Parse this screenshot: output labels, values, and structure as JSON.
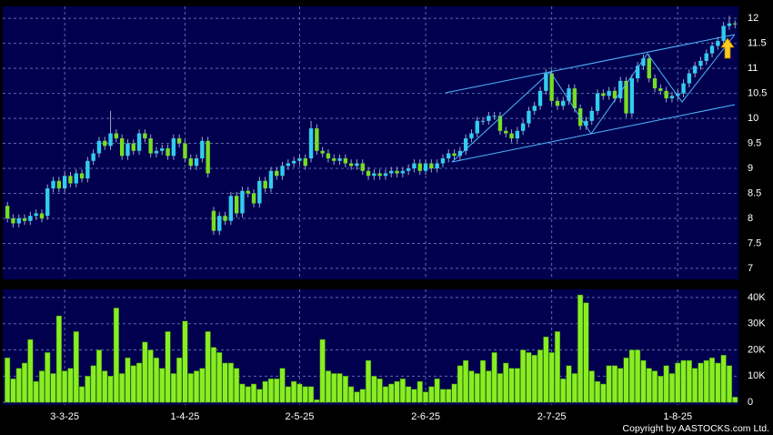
{
  "chart_data": [
    {
      "type": "candlestick",
      "up_color": "#33ccee",
      "down_color": "#77dd22",
      "ylim": [
        6.78,
        12.24
      ],
      "yticks": [
        7,
        7.5,
        8,
        8.5,
        9,
        9.5,
        10,
        10.5,
        11,
        11.5,
        12
      ],
      "grid": true,
      "categories": [
        null,
        null,
        null,
        null,
        null,
        null,
        null,
        null,
        null,
        null,
        "3-3-25",
        null,
        null,
        null,
        null,
        null,
        null,
        null,
        null,
        null,
        null,
        null,
        null,
        null,
        null,
        null,
        null,
        null,
        null,
        null,
        null,
        "1-4-25",
        null,
        null,
        null,
        null,
        null,
        null,
        null,
        null,
        null,
        null,
        null,
        null,
        null,
        null,
        null,
        null,
        null,
        null,
        null,
        "2-5-25",
        null,
        null,
        null,
        null,
        null,
        null,
        null,
        null,
        null,
        null,
        null,
        null,
        null,
        null,
        null,
        null,
        null,
        null,
        null,
        null,
        null,
        "2-6-25",
        null,
        null,
        null,
        null,
        null,
        null,
        null,
        null,
        null,
        null,
        null,
        null,
        null,
        null,
        null,
        null,
        null,
        null,
        null,
        null,
        null,
        "2-7-25",
        null,
        null,
        null,
        null,
        null,
        null,
        null,
        null,
        null,
        null,
        null,
        null,
        null,
        null,
        null,
        null,
        null,
        null,
        null,
        null,
        null,
        "1-8-25",
        null,
        null,
        null,
        null,
        null,
        null,
        null,
        null,
        null,
        null
      ],
      "open": [
        8.25,
        8.0,
        7.9,
        8.0,
        7.95,
        8.05,
        8.1,
        8.05,
        8.6,
        8.75,
        8.6,
        8.85,
        8.7,
        8.9,
        8.8,
        9.15,
        9.3,
        9.55,
        9.45,
        9.7,
        9.6,
        9.25,
        9.5,
        9.35,
        9.7,
        9.6,
        9.3,
        9.35,
        9.4,
        9.25,
        9.6,
        9.5,
        9.2,
        9.05,
        9.2,
        9.55,
        8.15,
        7.75,
        8.05,
        7.95,
        8.45,
        8.1,
        8.55,
        8.5,
        8.3,
        8.75,
        8.6,
        8.95,
        8.85,
        9.05,
        9.1,
        9.15,
        9.2,
        9.2,
        9.8,
        9.35,
        9.3,
        9.2,
        9.15,
        9.2,
        9.1,
        9.05,
        9.1,
        8.95,
        8.85,
        8.9,
        8.85,
        8.9,
        8.95,
        8.9,
        8.95,
        9.0,
        9.1,
        8.95,
        9.1,
        9.0,
        9.1,
        9.2,
        9.3,
        9.25,
        9.35,
        9.6,
        9.7,
        9.95,
        9.95,
        10.05,
        10.05,
        9.75,
        9.7,
        9.6,
        9.75,
        9.9,
        10.15,
        10.25,
        10.55,
        10.9,
        10.35,
        10.25,
        10.35,
        10.6,
        10.2,
        9.85,
        9.95,
        10.15,
        10.5,
        10.45,
        10.55,
        10.4,
        10.75,
        10.1,
        10.8,
        11.05,
        11.2,
        10.8,
        10.6,
        10.55,
        10.4,
        10.45,
        10.5,
        10.7,
        10.9,
        11.05,
        11.15,
        11.3,
        11.45,
        11.55,
        11.85,
        11.9
      ],
      "high": [
        8.33,
        8.08,
        8.08,
        8.08,
        8.13,
        8.18,
        8.18,
        8.68,
        8.83,
        8.83,
        8.93,
        8.93,
        8.98,
        8.98,
        9.23,
        9.38,
        9.63,
        9.63,
        10.15,
        9.78,
        9.68,
        9.58,
        9.58,
        9.78,
        9.78,
        9.68,
        9.43,
        9.48,
        9.48,
        9.68,
        9.68,
        9.58,
        9.28,
        9.28,
        9.63,
        9.63,
        8.23,
        8.13,
        8.13,
        8.53,
        8.53,
        8.63,
        8.63,
        8.58,
        8.83,
        8.83,
        9.03,
        9.03,
        9.13,
        9.18,
        9.23,
        9.28,
        9.28,
        9.95,
        9.88,
        9.43,
        9.38,
        9.28,
        9.28,
        9.28,
        9.18,
        9.18,
        9.18,
        9.03,
        8.98,
        8.98,
        8.98,
        9.03,
        9.03,
        9.03,
        9.08,
        9.18,
        9.18,
        9.18,
        9.18,
        9.18,
        9.28,
        9.38,
        9.38,
        9.43,
        9.68,
        9.78,
        10.03,
        10.03,
        10.13,
        10.13,
        10.13,
        9.83,
        9.78,
        9.83,
        9.98,
        10.23,
        10.33,
        10.63,
        10.98,
        10.98,
        10.43,
        10.43,
        10.68,
        10.68,
        10.28,
        10.03,
        10.23,
        10.58,
        10.58,
        10.63,
        10.63,
        10.83,
        10.83,
        10.88,
        11.13,
        11.28,
        11.28,
        10.88,
        10.68,
        10.63,
        10.53,
        10.58,
        10.78,
        10.98,
        11.13,
        11.23,
        11.38,
        11.53,
        11.63,
        11.93,
        12.05,
        11.96
      ],
      "low": [
        7.92,
        7.82,
        7.82,
        7.87,
        7.87,
        7.97,
        7.92,
        7.97,
        8.52,
        8.52,
        8.52,
        8.62,
        8.62,
        8.72,
        8.72,
        9.07,
        9.22,
        9.37,
        9.37,
        9.52,
        9.17,
        9.17,
        9.27,
        9.27,
        9.52,
        9.22,
        9.22,
        9.27,
        9.17,
        9.17,
        9.42,
        9.12,
        8.97,
        8.97,
        9.12,
        8.82,
        7.67,
        7.67,
        7.87,
        7.87,
        8.02,
        8.02,
        8.42,
        8.22,
        8.22,
        8.52,
        8.52,
        8.77,
        8.77,
        8.97,
        9.02,
        9.07,
        8.97,
        9.12,
        9.27,
        9.22,
        9.12,
        9.07,
        9.07,
        9.02,
        8.97,
        8.97,
        8.87,
        8.77,
        8.77,
        8.77,
        8.77,
        8.82,
        8.82,
        8.82,
        8.87,
        8.92,
        8.87,
        8.87,
        8.92,
        8.92,
        9.02,
        9.12,
        9.17,
        9.17,
        9.27,
        9.52,
        9.62,
        9.87,
        9.87,
        9.97,
        9.67,
        9.62,
        9.52,
        9.52,
        9.67,
        9.82,
        10.07,
        10.17,
        10.47,
        10.27,
        10.17,
        10.17,
        10.27,
        10.12,
        9.77,
        9.77,
        9.87,
        10.07,
        10.37,
        10.37,
        10.32,
        10.32,
        10.02,
        10.02,
        10.72,
        10.97,
        10.72,
        10.52,
        10.47,
        10.32,
        10.32,
        10.37,
        10.42,
        10.62,
        10.82,
        10.97,
        11.07,
        11.22,
        11.37,
        11.47,
        11.77,
        11.8
      ],
      "close": [
        8.0,
        7.9,
        8.0,
        7.95,
        8.05,
        8.1,
        8.0,
        8.6,
        8.75,
        8.6,
        8.85,
        8.7,
        8.9,
        8.8,
        9.15,
        9.3,
        9.55,
        9.45,
        9.7,
        9.6,
        9.25,
        9.5,
        9.35,
        9.7,
        9.6,
        9.3,
        9.35,
        9.4,
        9.25,
        9.6,
        9.5,
        9.2,
        9.05,
        9.2,
        9.55,
        8.9,
        7.75,
        8.05,
        7.95,
        8.45,
        8.1,
        8.55,
        8.5,
        8.3,
        8.75,
        8.6,
        8.95,
        8.85,
        9.05,
        9.1,
        9.15,
        9.2,
        9.05,
        9.8,
        9.35,
        9.3,
        9.2,
        9.15,
        9.2,
        9.1,
        9.05,
        9.1,
        8.95,
        8.85,
        8.9,
        8.85,
        8.9,
        8.95,
        8.9,
        8.95,
        9.0,
        9.1,
        8.95,
        9.1,
        9.0,
        9.1,
        9.2,
        9.3,
        9.25,
        9.35,
        9.6,
        9.7,
        9.95,
        9.95,
        10.05,
        10.05,
        9.75,
        9.7,
        9.6,
        9.75,
        9.9,
        10.15,
        10.25,
        10.55,
        10.9,
        10.35,
        10.25,
        10.35,
        10.6,
        10.2,
        9.85,
        9.95,
        10.15,
        10.5,
        10.45,
        10.55,
        10.4,
        10.75,
        10.1,
        10.8,
        11.05,
        11.2,
        10.8,
        10.6,
        10.55,
        10.4,
        10.45,
        10.5,
        10.7,
        10.9,
        11.05,
        11.15,
        11.3,
        11.45,
        11.55,
        11.85,
        11.9,
        11.88
      ]
    },
    {
      "type": "bar",
      "color": "#88ee22",
      "ylim": [
        -1000,
        43100
      ],
      "yticks": [
        0,
        {
          "value": 10000,
          "label": "10K"
        },
        {
          "value": 20000,
          "label": "20K"
        },
        {
          "value": 30000,
          "label": "30K"
        },
        {
          "value": 40000,
          "label": "40K"
        }
      ],
      "grid": true,
      "categories": [
        null,
        null,
        null,
        null,
        null,
        null,
        null,
        null,
        null,
        null,
        "3-3-25",
        null,
        null,
        null,
        null,
        null,
        null,
        null,
        null,
        null,
        null,
        null,
        null,
        null,
        null,
        null,
        null,
        null,
        null,
        null,
        null,
        "1-4-25",
        null,
        null,
        null,
        null,
        null,
        null,
        null,
        null,
        null,
        null,
        null,
        null,
        null,
        null,
        null,
        null,
        null,
        null,
        null,
        "2-5-25",
        null,
        null,
        null,
        null,
        null,
        null,
        null,
        null,
        null,
        null,
        null,
        null,
        null,
        null,
        null,
        null,
        null,
        null,
        null,
        null,
        null,
        "2-6-25",
        null,
        null,
        null,
        null,
        null,
        null,
        null,
        null,
        null,
        null,
        null,
        null,
        null,
        null,
        null,
        null,
        null,
        null,
        null,
        null,
        null,
        "2-7-25",
        null,
        null,
        null,
        null,
        null,
        null,
        null,
        null,
        null,
        null,
        null,
        null,
        null,
        null,
        null,
        null,
        null,
        null,
        null,
        null,
        null,
        "1-8-25",
        null,
        null,
        null,
        null,
        null,
        null,
        null,
        null,
        null,
        null
      ],
      "values": [
        17000,
        9000,
        13000,
        15000,
        24000,
        8000,
        12000,
        19000,
        11000,
        33000,
        12000,
        13000,
        27000,
        6000,
        10000,
        14000,
        20000,
        12000,
        10000,
        36000,
        11000,
        17000,
        14000,
        15000,
        23000,
        20000,
        17000,
        13000,
        27000,
        11000,
        17000,
        31000,
        11000,
        12000,
        13000,
        27000,
        21000,
        19000,
        15000,
        15000,
        13000,
        7000,
        6000,
        7000,
        5000,
        8000,
        9000,
        9000,
        13000,
        6000,
        8000,
        7000,
        6000,
        6000,
        1000,
        24000,
        12000,
        11000,
        11000,
        10000,
        6000,
        4000,
        5000,
        16000,
        10000,
        9000,
        6000,
        7000,
        8000,
        9000,
        6000,
        5000,
        8000,
        4000,
        6000,
        9000,
        5000,
        5000,
        7000,
        14000,
        16000,
        12000,
        11000,
        16000,
        12000,
        19000,
        11000,
        15000,
        13000,
        13000,
        20000,
        19000,
        18000,
        20000,
        25000,
        19000,
        27000,
        9000,
        14000,
        11000,
        41000,
        38000,
        12000,
        8000,
        7000,
        14000,
        14000,
        13000,
        17000,
        20000,
        20000,
        16000,
        13000,
        12000,
        10000,
        14000,
        11000,
        15000,
        16000,
        16000,
        13000,
        15000,
        16000,
        17000,
        15000,
        18000,
        14000,
        2000
      ]
    }
  ],
  "footer": "Copyright by AASTOCKS.com Ltd."
}
